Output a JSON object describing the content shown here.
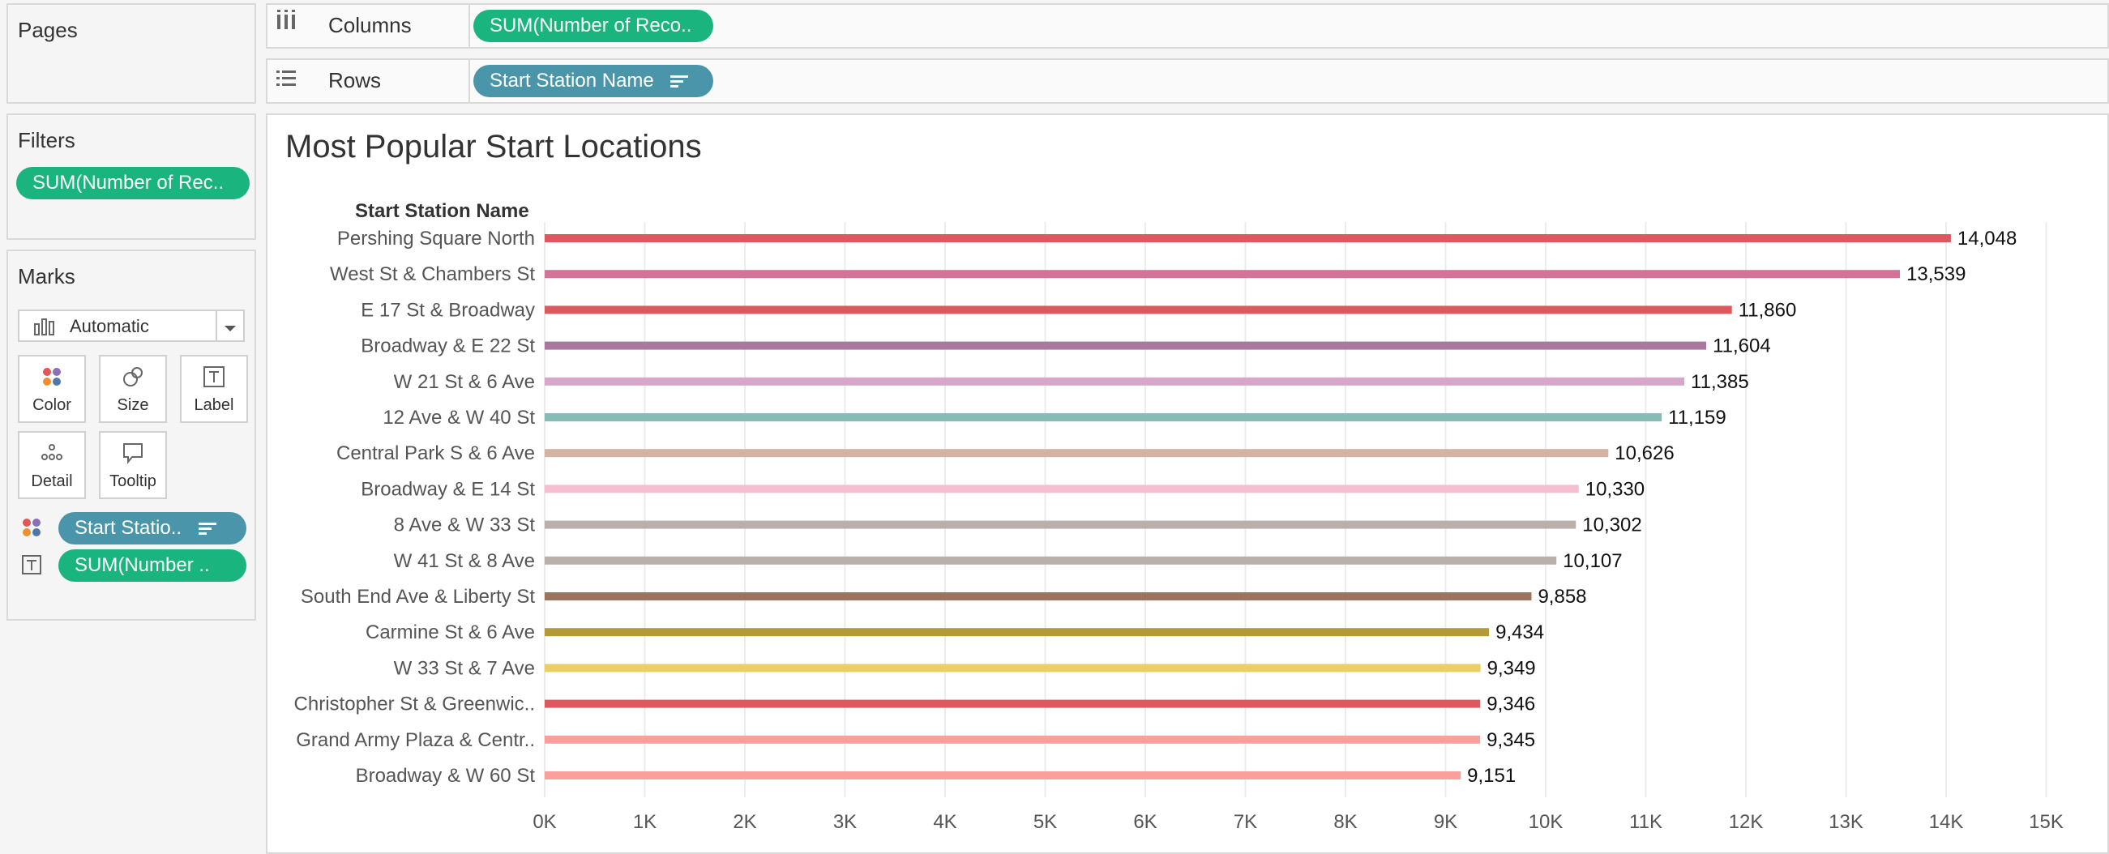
{
  "pages": {
    "title": "Pages"
  },
  "filters": {
    "title": "Filters",
    "pill": "SUM(Number of Rec.."
  },
  "marks": {
    "title": "Marks",
    "type_selected": "Automatic",
    "buttons": {
      "color": "Color",
      "size": "Size",
      "label": "Label",
      "detail": "Detail",
      "tooltip": "Tooltip"
    },
    "fields": {
      "color_field": "Start Statio..",
      "label_field": "SUM(Number .."
    }
  },
  "columns_shelf": {
    "label": "Columns",
    "pill": "SUM(Number of Reco.."
  },
  "rows_shelf": {
    "label": "Rows",
    "pill": "Start Station Name"
  },
  "colors": {
    "green_pill": "#1ab47e",
    "blue_pill": "#4b95ab"
  },
  "chart_data": {
    "type": "bar",
    "orientation": "horizontal",
    "title": "Most Popular Start Locations",
    "row_header": "Start Station Name",
    "categories": [
      "Pershing Square North",
      "West St & Chambers St",
      "E 17 St & Broadway",
      "Broadway & E 22 St",
      "W 21 St & 6 Ave",
      "12 Ave & W 40 St",
      "Central Park S & 6 Ave",
      "Broadway & E 14 St",
      "8 Ave & W 33 St",
      "W 41 St & 8 Ave",
      "South End Ave & Liberty St",
      "Carmine St & 6 Ave",
      "W 33 St & 7 Ave",
      "Christopher St & Greenwic..",
      "Grand Army Plaza & Centr..",
      "Broadway & W 60 St"
    ],
    "values": [
      14048,
      13539,
      11860,
      11604,
      11385,
      11159,
      10626,
      10330,
      10302,
      10107,
      9858,
      9434,
      9349,
      9346,
      9345,
      9151
    ],
    "value_labels": [
      "14,048",
      "13,539",
      "11,860",
      "11,604",
      "11,385",
      "11,159",
      "10,626",
      "10,330",
      "10,302",
      "10,107",
      "9,858",
      "9,434",
      "9,349",
      "9,346",
      "9,345",
      "9,151"
    ],
    "bar_colors": [
      "#dc5a5f",
      "#d3739a",
      "#dc5a5f",
      "#a8789e",
      "#d7a6c8",
      "#86bcb6",
      "#d4b3a3",
      "#f6bfd0",
      "#b9b0ac",
      "#b9b0ac",
      "#9b7460",
      "#b39a36",
      "#ebcf65",
      "#dc5a5f",
      "#fb9f9c",
      "#fb9f9c"
    ],
    "x_ticks": [
      "0K",
      "1K",
      "2K",
      "3K",
      "4K",
      "5K",
      "6K",
      "7K",
      "8K",
      "9K",
      "10K",
      "11K",
      "12K",
      "13K",
      "14K",
      "15K"
    ],
    "xlim": [
      0,
      15000
    ],
    "grid": true
  }
}
